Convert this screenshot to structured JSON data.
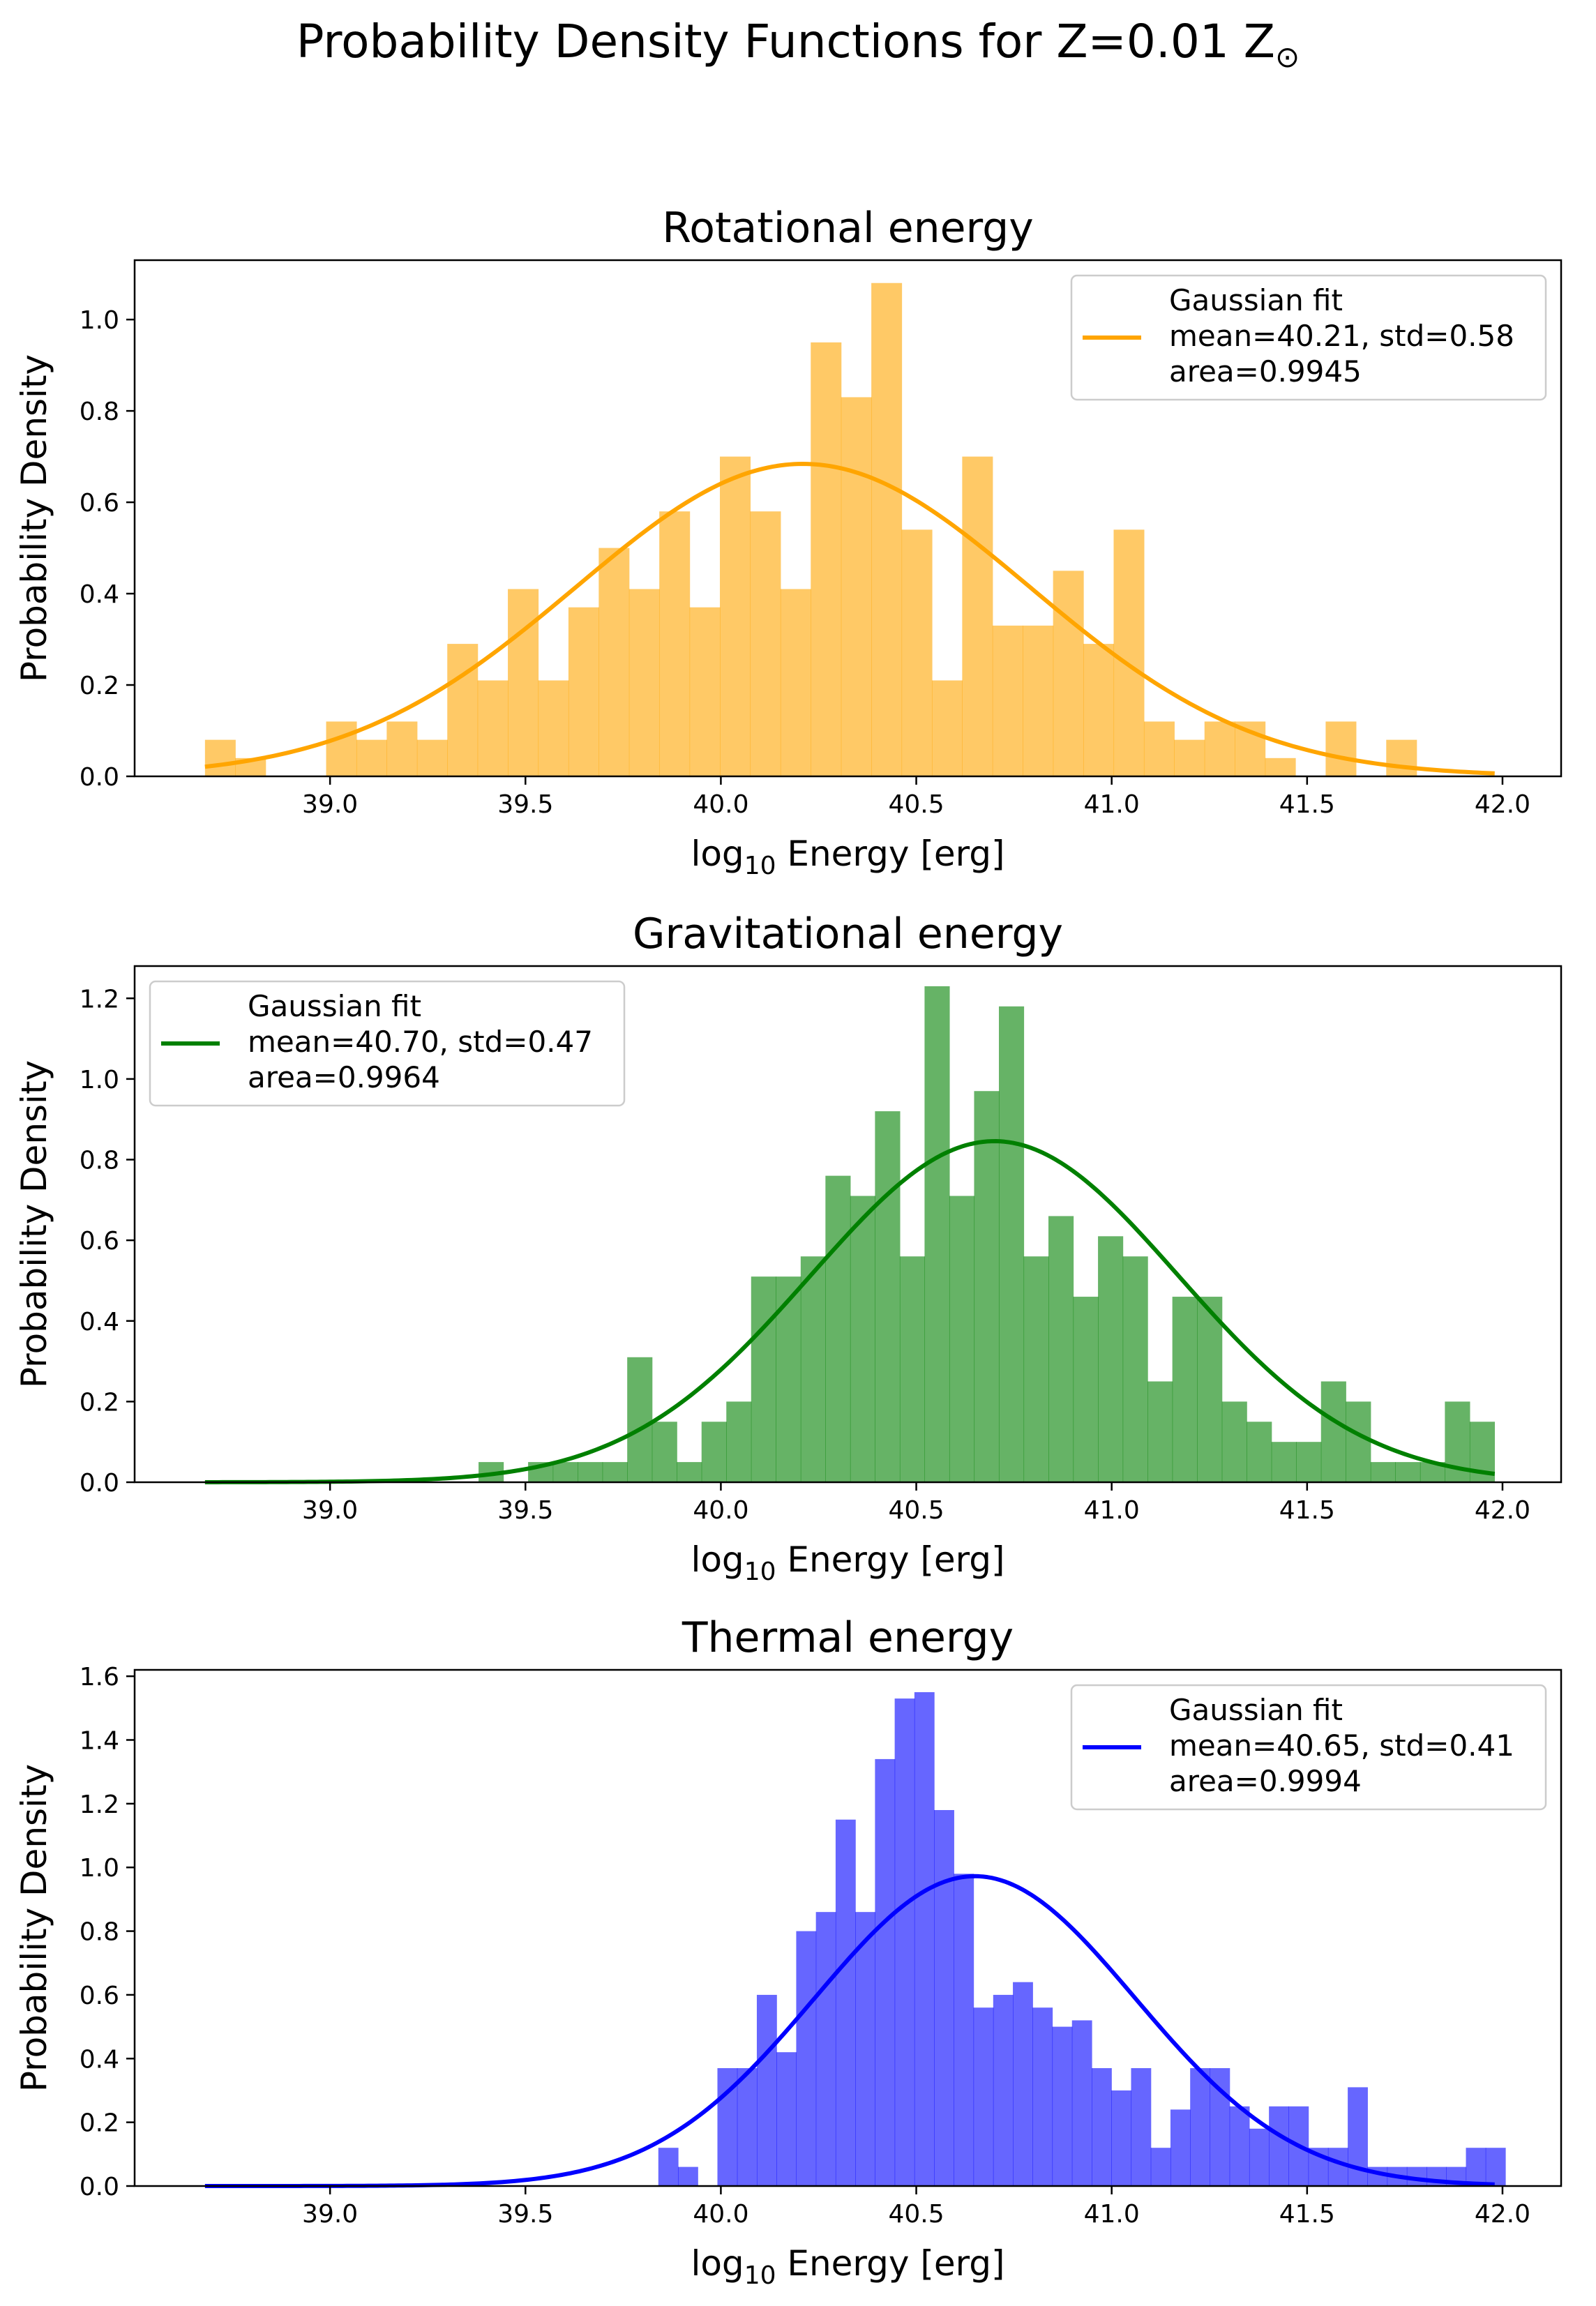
{
  "figure": {
    "suptitle": "Probability Density Functions for Z=0.01 Z",
    "suptitle_symbol": "⊙"
  },
  "chart_data": [
    {
      "type": "bar",
      "title": "Rotational energy",
      "xlabel": "log10 Energy [erg]",
      "xlabel_parts": [
        "log",
        "10",
        " Energy [erg]"
      ],
      "ylabel": "Probability Density",
      "xlim": [
        38.5,
        42.15
      ],
      "ylim": [
        0,
        1.13
      ],
      "xticks": [
        39.0,
        39.5,
        40.0,
        40.5,
        41.0,
        41.5,
        42.0
      ],
      "xtick_labels": [
        "39.0",
        "39.5",
        "40.0",
        "40.5",
        "41.0",
        "41.5",
        "42.0"
      ],
      "yticks": [
        0.0,
        0.2,
        0.4,
        0.6,
        0.8,
        1.0
      ],
      "ytick_labels": [
        "0.0",
        "0.2",
        "0.4",
        "0.6",
        "0.8",
        "1.0"
      ],
      "color": "#ffa500",
      "hist_alpha": 0.6,
      "bin_start": 38.68,
      "bin_width": 0.0775,
      "values": [
        0.08,
        0.04,
        0,
        0,
        0.12,
        0.08,
        0.12,
        0.08,
        0.29,
        0.21,
        0.41,
        0.21,
        0.37,
        0.5,
        0.41,
        0.58,
        0.37,
        0.7,
        0.58,
        0.41,
        0.95,
        0.83,
        1.08,
        0.54,
        0.21,
        0.7,
        0.33,
        0.33,
        0.45,
        0.29,
        0.54,
        0.12,
        0.08,
        0.12,
        0.12,
        0.04,
        0,
        0.12,
        0,
        0.08,
        0,
        0
      ],
      "fit": {
        "mean": 40.21,
        "std": 0.58,
        "area": 0.9945,
        "x_range": [
          38.68,
          41.98
        ]
      },
      "legend": {
        "position": "upper right",
        "lines": [
          "Gaussian fit",
          "mean=40.21, std=0.58",
          "area=0.9945"
        ]
      }
    },
    {
      "type": "bar",
      "title": "Gravitational energy",
      "xlabel": "log10 Energy [erg]",
      "xlabel_parts": [
        "log",
        "10",
        " Energy [erg]"
      ],
      "ylabel": "Probability Density",
      "xlim": [
        38.5,
        42.15
      ],
      "ylim": [
        0,
        1.28
      ],
      "xticks": [
        39.0,
        39.5,
        40.0,
        40.5,
        41.0,
        41.5,
        42.0
      ],
      "xtick_labels": [
        "39.0",
        "39.5",
        "40.0",
        "40.5",
        "41.0",
        "41.5",
        "42.0"
      ],
      "yticks": [
        0.0,
        0.2,
        0.4,
        0.6,
        0.8,
        1.0,
        1.2
      ],
      "ytick_labels": [
        "0.0",
        "0.2",
        "0.4",
        "0.6",
        "0.8",
        "1.0",
        "1.2"
      ],
      "color": "#008000",
      "hist_alpha": 0.6,
      "bin_start": 39.38,
      "bin_width": 0.0634,
      "values": [
        0.05,
        0,
        0.05,
        0.05,
        0.05,
        0.05,
        0.31,
        0.15,
        0.05,
        0.15,
        0.2,
        0.51,
        0.51,
        0.56,
        0.76,
        0.71,
        0.92,
        0.56,
        1.23,
        0.71,
        0.97,
        1.18,
        0.56,
        0.66,
        0.46,
        0.61,
        0.56,
        0.25,
        0.46,
        0.46,
        0.2,
        0.15,
        0.1,
        0.1,
        0.25,
        0.2,
        0.05,
        0.05,
        0.05,
        0.2,
        0.15
      ],
      "fit": {
        "mean": 40.7,
        "std": 0.47,
        "area": 0.9964,
        "x_range": [
          38.68,
          41.98
        ]
      },
      "legend": {
        "position": "upper left",
        "lines": [
          "Gaussian fit",
          "mean=40.70, std=0.47",
          "area=0.9964"
        ]
      }
    },
    {
      "type": "bar",
      "title": "Thermal energy",
      "xlabel": "log10 Energy [erg]",
      "xlabel_parts": [
        "log",
        "10",
        " Energy [erg]"
      ],
      "ylabel": "Probability Density",
      "xlim": [
        38.5,
        42.15
      ],
      "ylim": [
        0,
        1.62
      ],
      "xticks": [
        39.0,
        39.5,
        40.0,
        40.5,
        41.0,
        41.5,
        42.0
      ],
      "xtick_labels": [
        "39.0",
        "39.5",
        "40.0",
        "40.5",
        "41.0",
        "41.5",
        "42.0"
      ],
      "yticks": [
        0.0,
        0.2,
        0.4,
        0.6,
        0.8,
        1.0,
        1.2,
        1.4,
        1.6
      ],
      "ytick_labels": [
        "0.0",
        "0.2",
        "0.4",
        "0.6",
        "0.8",
        "1.0",
        "1.2",
        "1.4",
        "1.6"
      ],
      "color": "#0000ff",
      "hist_alpha": 0.6,
      "bin_start": 39.84,
      "bin_width": 0.0504,
      "values": [
        0.12,
        0.06,
        0,
        0.37,
        0.37,
        0.6,
        0.42,
        0.8,
        0.86,
        1.15,
        0.86,
        1.34,
        1.53,
        1.55,
        1.18,
        0.98,
        0.56,
        0.6,
        0.64,
        0.56,
        0.5,
        0.52,
        0.37,
        0.3,
        0.37,
        0.12,
        0.24,
        0.37,
        0.37,
        0.25,
        0.18,
        0.25,
        0.25,
        0.12,
        0.12,
        0.31,
        0.06,
        0.06,
        0.06,
        0.06,
        0.06,
        0.12,
        0.12
      ],
      "fit": {
        "mean": 40.65,
        "std": 0.41,
        "area": 0.9994,
        "x_range": [
          38.68,
          41.98
        ]
      },
      "legend": {
        "position": "upper right",
        "lines": [
          "Gaussian fit",
          "mean=40.65, std=0.41",
          "area=0.9994"
        ]
      }
    }
  ]
}
